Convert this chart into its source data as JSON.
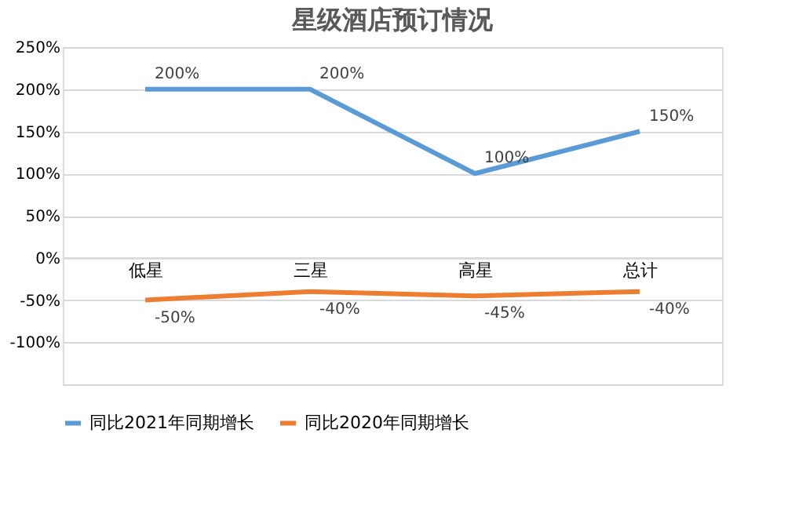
{
  "chart_data": {
    "type": "line",
    "title": "星级酒店预订情况",
    "categories": [
      "低星",
      "三星",
      "高星",
      "总计"
    ],
    "series": [
      {
        "name": "同比2021年同期增长",
        "color": "#5b9bd5",
        "values": [
          200,
          200,
          100,
          150
        ],
        "value_labels": [
          "200%",
          "200%",
          "100%",
          "150%"
        ]
      },
      {
        "name": "同比2020年同期增长",
        "color": "#ed7d31",
        "values": [
          -50,
          -40,
          -45,
          -40
        ],
        "value_labels": [
          "-50%",
          "-40%",
          "-45%",
          "-40%"
        ]
      }
    ],
    "ylim": [
      -150,
      250
    ],
    "yticks": [
      {
        "value": -150,
        "label": null
      },
      {
        "value": -100,
        "label": "-100%"
      },
      {
        "value": -50,
        "label": "-50%"
      },
      {
        "value": 0,
        "label": "0%"
      },
      {
        "value": 50,
        "label": "50%"
      },
      {
        "value": 100,
        "label": "100%"
      },
      {
        "value": 150,
        "label": "150%"
      },
      {
        "value": 200,
        "label": "200%"
      },
      {
        "value": 250,
        "label": "250%"
      }
    ],
    "grid": "y",
    "legend": "bottom",
    "marker": "none",
    "line_style": "solid"
  }
}
